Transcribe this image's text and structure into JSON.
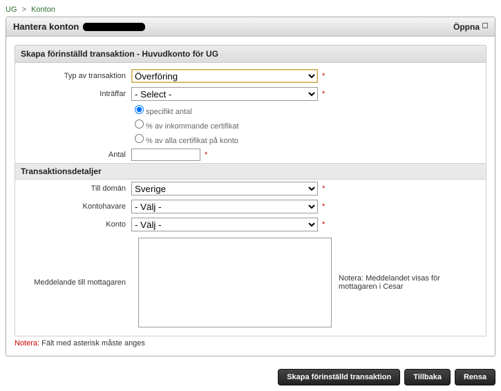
{
  "breadcrumb": {
    "root": "UG",
    "current": "Konton"
  },
  "panel": {
    "title": "Hantera konton",
    "open": "Öppna"
  },
  "section1": {
    "title": "Skapa förinställd transaktion - Huvudkonto för UG",
    "type_label": "Typ av transaktion",
    "type_value": "Överföring",
    "occurs_label": "Inträffar",
    "occurs_value": "- Select -",
    "radio1": "specifikt antal",
    "radio2": "% av inkommande certifikat",
    "radio3": "% av alla certifikat på konto",
    "count_label": "Antal"
  },
  "section2": {
    "title": "Transaktionsdetaljer",
    "domain_label": "Till domän",
    "domain_value": "Sverige",
    "holder_label": "Kontohavare",
    "holder_value": "- Välj -",
    "account_label": "Konto",
    "account_value": "- Välj -",
    "message_label": "Meddelande till mottagaren",
    "message_note": "Notera: Meddelandet visas för mottagaren i Cesar"
  },
  "footnote": {
    "prefix": "Notera:",
    "text": " Fält med asterisk måste anges"
  },
  "buttons": {
    "create": "Skapa förinställd transaktion",
    "back": "Tillbaka",
    "clear": "Rensa"
  },
  "colors": {
    "accent_green": "#2a6e2f",
    "required_red": "#cc0000",
    "btn_bg": "#2f2f2f"
  }
}
